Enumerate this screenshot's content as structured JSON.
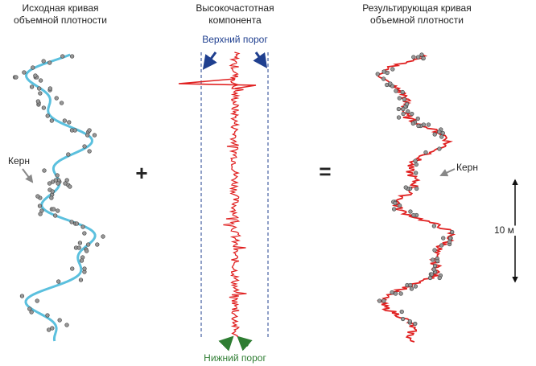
{
  "panels": [
    {
      "title": [
        "Исходная кривая",
        "объемной плотности"
      ]
    },
    {
      "title": [
        "Высокочастотная",
        "компонента"
      ]
    },
    {
      "title": [
        "Результирующая кривая",
        "объемной плотности"
      ]
    }
  ],
  "operators": {
    "plus": "+",
    "equals": "="
  },
  "labels": {
    "upper_threshold": "Верхний порог",
    "lower_threshold": "Нижний порог",
    "core_left": "Керн",
    "core_right": "Керн",
    "scale": "10 м"
  }
}
